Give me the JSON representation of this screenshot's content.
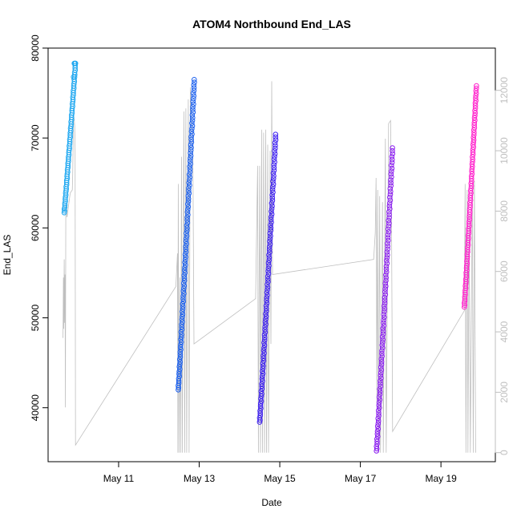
{
  "chart_data": {
    "type": "scatter",
    "title": "ATOM4 Northbound End_LAS",
    "xlabel": "Date",
    "ylabel": "End_LAS",
    "x_ticks": [
      "May 11",
      "May 13",
      "May 15",
      "May 17",
      "May 19"
    ],
    "x_tick_values": [
      11,
      13,
      15,
      17,
      19
    ],
    "xlim": [
      9.25,
      20.35
    ],
    "ylim": [
      34000,
      80000
    ],
    "y_ticks": [
      "40000",
      "50000",
      "60000",
      "70000",
      "80000"
    ],
    "y_tick_values": [
      40000,
      50000,
      60000,
      70000,
      80000
    ],
    "y2lim": [
      -300,
      13400
    ],
    "y2_ticks": [
      "0",
      "2000",
      "4000",
      "6000",
      "8000",
      "10000",
      "12000"
    ],
    "y2_tick_values": [
      0,
      2000,
      4000,
      6000,
      8000,
      10000,
      12000
    ],
    "grid": false,
    "legend": "none",
    "series": [
      {
        "color": "#1ea7f0",
        "segments": [
          {
            "x_start": 9.65,
            "x_end": 9.93,
            "y_start": 61700,
            "y_end": 78300,
            "n": 70
          }
        ],
        "extra_points": [
          {
            "x": 9.88,
            "y": 76800
          },
          {
            "x": 9.9,
            "y": 78300
          },
          {
            "x": 9.92,
            "y": 78300
          }
        ]
      },
      {
        "color": "#1a5fee",
        "segments": [
          {
            "x_start": 12.48,
            "x_end": 12.88,
            "y_start": 42000,
            "y_end": 76500,
            "n": 120
          }
        ]
      },
      {
        "color": "#3a1cf0",
        "segments": [
          {
            "x_start": 14.5,
            "x_end": 14.9,
            "y_start": 38400,
            "y_end": 70400,
            "n": 110
          }
        ]
      },
      {
        "color": "#8a1cf0",
        "segments": [
          {
            "x_start": 17.4,
            "x_end": 17.8,
            "y_start": 35200,
            "y_end": 68900,
            "n": 110
          }
        ]
      },
      {
        "color": "#ff22cc",
        "segments": [
          {
            "x_start": 19.58,
            "x_end": 19.88,
            "y_start": 51200,
            "y_end": 75800,
            "n": 95
          }
        ]
      }
    ],
    "secondary_series": {
      "color": "#bfbfbf",
      "axis": "right",
      "points": [
        [
          9.62,
          3800
        ],
        [
          9.63,
          5800
        ],
        [
          9.64,
          4100
        ],
        [
          9.65,
          6400
        ],
        [
          9.66,
          4300
        ],
        [
          9.67,
          5900
        ],
        [
          9.68,
          1500
        ],
        [
          9.69,
          8200
        ],
        [
          9.72,
          7800
        ],
        [
          9.75,
          8100
        ],
        [
          9.8,
          8600
        ],
        [
          9.85,
          8700
        ],
        [
          9.86,
          9200
        ],
        [
          9.88,
          11200
        ],
        [
          9.9,
          11000
        ],
        [
          9.91,
          10800
        ],
        [
          9.92,
          10000
        ],
        [
          9.93,
          250
        ],
        [
          12.42,
          5500
        ],
        [
          12.46,
          6600
        ],
        [
          12.47,
          0
        ],
        [
          12.48,
          8900
        ],
        [
          12.5,
          0
        ],
        [
          12.52,
          5800
        ],
        [
          12.54,
          0
        ],
        [
          12.56,
          9800
        ],
        [
          12.58,
          0
        ],
        [
          12.62,
          11300
        ],
        [
          12.64,
          0
        ],
        [
          12.67,
          11400
        ],
        [
          12.69,
          0
        ],
        [
          12.73,
          11700
        ],
        [
          12.75,
          0
        ],
        [
          12.78,
          12100
        ],
        [
          12.8,
          11300
        ],
        [
          12.84,
          10500
        ],
        [
          12.87,
          3600
        ],
        [
          14.4,
          5100
        ],
        [
          14.45,
          9500
        ],
        [
          14.47,
          0
        ],
        [
          14.5,
          9500
        ],
        [
          14.52,
          0
        ],
        [
          14.55,
          10700
        ],
        [
          14.57,
          0
        ],
        [
          14.6,
          10600
        ],
        [
          14.62,
          0
        ],
        [
          14.65,
          10700
        ],
        [
          14.67,
          0
        ],
        [
          14.7,
          10200
        ],
        [
          14.72,
          0
        ],
        [
          14.76,
          10000
        ],
        [
          14.78,
          3600
        ],
        [
          14.8,
          12300
        ],
        [
          14.82,
          5900
        ],
        [
          17.33,
          6400
        ],
        [
          17.37,
          7300
        ],
        [
          17.39,
          9100
        ],
        [
          17.41,
          1500
        ],
        [
          17.43,
          8700
        ],
        [
          17.45,
          0
        ],
        [
          17.48,
          8500
        ],
        [
          17.5,
          0
        ],
        [
          17.55,
          8300
        ],
        [
          17.57,
          0
        ],
        [
          17.62,
          10400
        ],
        [
          17.64,
          0
        ],
        [
          17.7,
          10900
        ],
        [
          17.75,
          11000
        ],
        [
          17.77,
          8700
        ],
        [
          17.8,
          700
        ],
        [
          19.58,
          4700
        ],
        [
          19.6,
          8900
        ],
        [
          19.62,
          0
        ],
        [
          19.65,
          8700
        ],
        [
          19.67,
          0
        ],
        [
          19.7,
          7900
        ],
        [
          19.73,
          0
        ],
        [
          19.78,
          8800
        ],
        [
          19.8,
          0
        ],
        [
          19.83,
          9000
        ],
        [
          19.86,
          0
        ]
      ]
    }
  }
}
